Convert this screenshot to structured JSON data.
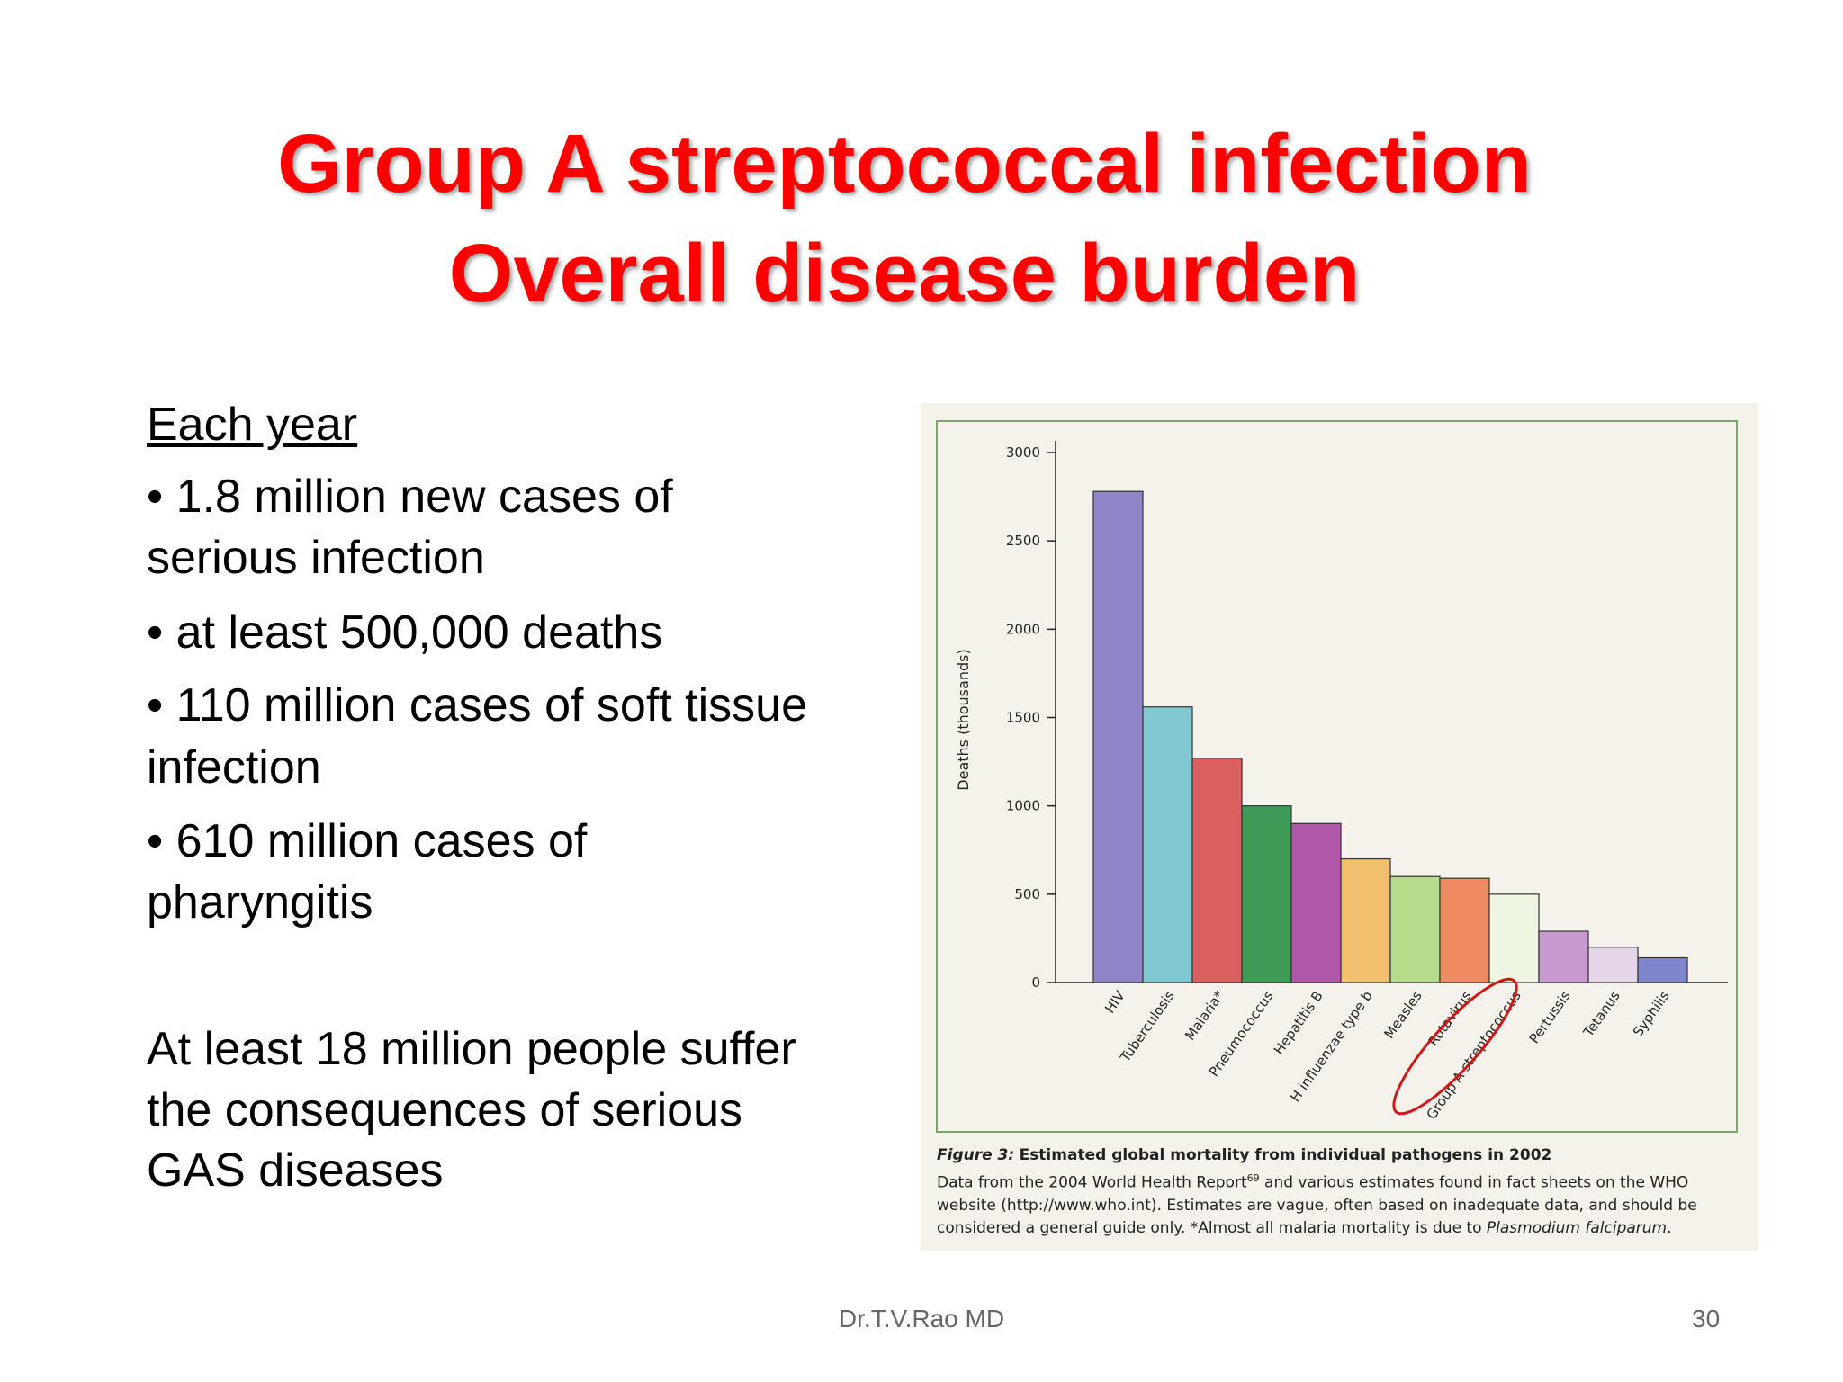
{
  "slide": {
    "title_lines": [
      "Group A streptococcal infection",
      "Overall disease burden"
    ],
    "heading": "Each year",
    "bullets": [
      [
        "• 1.8 million new cases of",
        "serious infection"
      ],
      [
        "• at least 500,000 deaths"
      ],
      [
        "• 110 million cases of soft tissue",
        "infection"
      ],
      [
        "• 610 million cases of",
        "pharyngitis"
      ]
    ],
    "summary": [
      "At least 18 million people suffer",
      "the consequences of serious",
      "GAS diseases"
    ],
    "footer": "Dr.T.V.Rao MD",
    "page_number": "30",
    "caption": {
      "label": "Figure 3:",
      "title": "Estimated global mortality from individual pathogens in 2002",
      "text_1": "Data from the 2004 World Health Report",
      "ref": "69",
      "text_2": " and various estimates found in fact sheets on the WHO website (http://www.who.int). Estimates are vague, often based on inadequate data, and should be considered a general guide only. *Almost all malaria mortality is due to ",
      "species": "Plasmodium falciparum",
      "end": "."
    }
  },
  "chart_data": {
    "type": "bar",
    "y_label": "Deaths (thousands)",
    "categories": [
      "HIV",
      "Tuberculosis",
      "Malaria*",
      "Pneumococcus",
      "Hepatitis B",
      "H influenzae type b",
      "Measles",
      "Rotavirus",
      "Group A streptococcus",
      "Pertussis",
      "Tetanus",
      "Syphilis"
    ],
    "values": [
      2780,
      1560,
      1270,
      1000,
      900,
      700,
      600,
      590,
      500,
      290,
      200,
      140
    ],
    "colors": [
      "#8f85c6",
      "#82c8d2",
      "#d9605f",
      "#3d9a57",
      "#b157a9",
      "#f0c06e",
      "#b4dc8a",
      "#f08a63",
      "#eef5e0",
      "#c99ad0",
      "#e6d6ea",
      "#7f86cc"
    ],
    "ylim": [
      0,
      3000
    ],
    "yticks": [
      0,
      500,
      1000,
      1500,
      2000,
      2500,
      3000
    ]
  }
}
